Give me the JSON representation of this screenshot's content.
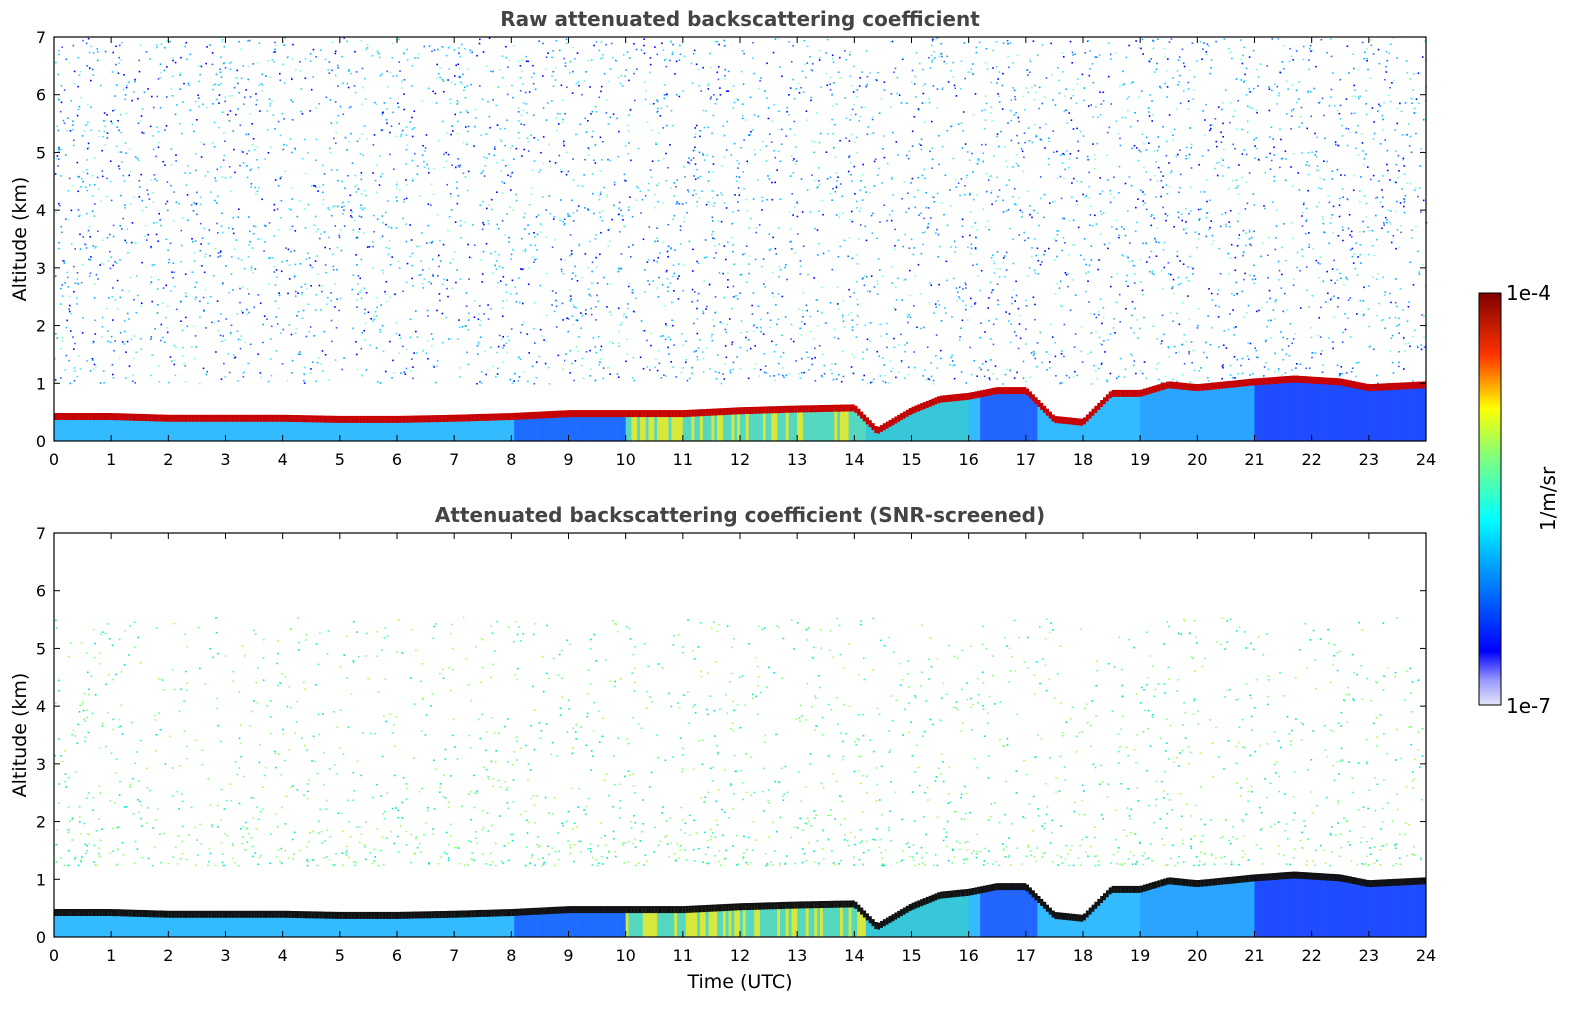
{
  "chart_data": [
    {
      "type": "heatmap",
      "title": "Raw attenuated backscattering coefficient",
      "xlabel": "",
      "ylabel": "Altitude (km)",
      "xlim": [
        0,
        24
      ],
      "ylim": [
        0,
        7
      ],
      "x_ticks": [
        "0",
        "1",
        "2",
        "3",
        "4",
        "5",
        "6",
        "7",
        "8",
        "9",
        "10",
        "11",
        "12",
        "13",
        "14",
        "15",
        "16",
        "17",
        "18",
        "19",
        "20",
        "21",
        "22",
        "23",
        "24"
      ],
      "y_ticks": [
        "0",
        "1",
        "2",
        "3",
        "4",
        "5",
        "6",
        "7"
      ],
      "color_scale": "log",
      "vmin": "1e-7",
      "vmax": "1e-4",
      "layer_top_km": {
        "time": [
          0,
          1,
          2,
          3,
          4,
          5,
          6,
          7,
          8,
          9,
          10,
          11,
          12,
          13,
          14,
          14.4,
          15,
          15.5,
          16,
          16.5,
          17,
          17.5,
          18,
          18.5,
          19,
          19.5,
          20,
          21,
          21.7,
          22.5,
          23,
          24
        ],
        "height": [
          0.45,
          0.45,
          0.42,
          0.42,
          0.42,
          0.4,
          0.4,
          0.42,
          0.45,
          0.5,
          0.5,
          0.5,
          0.55,
          0.58,
          0.6,
          0.2,
          0.55,
          0.75,
          0.8,
          0.9,
          0.9,
          0.4,
          0.35,
          0.85,
          0.85,
          1.0,
          0.95,
          1.05,
          1.1,
          1.05,
          0.95,
          1.0
        ]
      }
    },
    {
      "type": "heatmap",
      "title": "Attenuated backscattering coefficient (SNR-screened)",
      "xlabel": "Time (UTC)",
      "ylabel": "Altitude (km)",
      "xlim": [
        0,
        24
      ],
      "ylim": [
        0,
        7
      ],
      "x_ticks": [
        "0",
        "1",
        "2",
        "3",
        "4",
        "5",
        "6",
        "7",
        "8",
        "9",
        "10",
        "11",
        "12",
        "13",
        "14",
        "15",
        "16",
        "17",
        "18",
        "19",
        "20",
        "21",
        "22",
        "23",
        "24"
      ],
      "y_ticks": [
        "0",
        "1",
        "2",
        "3",
        "4",
        "5",
        "6",
        "7"
      ],
      "color_scale": "log",
      "vmin": "1e-7",
      "vmax": "1e-4",
      "layer_top_km": {
        "time": [
          0,
          1,
          2,
          3,
          4,
          5,
          6,
          7,
          8,
          9,
          10,
          11,
          12,
          13,
          14,
          14.4,
          15,
          15.5,
          16,
          16.5,
          17,
          17.5,
          18,
          18.5,
          19,
          19.5,
          20,
          21,
          21.7,
          22.5,
          23,
          24
        ],
        "height": [
          0.45,
          0.45,
          0.42,
          0.42,
          0.42,
          0.4,
          0.4,
          0.42,
          0.45,
          0.5,
          0.5,
          0.5,
          0.55,
          0.58,
          0.6,
          0.2,
          0.55,
          0.75,
          0.8,
          0.9,
          0.9,
          0.4,
          0.35,
          0.85,
          0.85,
          1.0,
          0.95,
          1.05,
          1.1,
          1.05,
          0.95,
          1.0
        ]
      }
    }
  ],
  "colorbar": {
    "max_label": "1e-4",
    "min_label": "1e-7",
    "unit_label": "1/m/sr",
    "colormap": "jet",
    "colors": [
      "#e6e6fa",
      "#0000ff",
      "#00ffff",
      "#ffff00",
      "#ff0000",
      "#800000"
    ]
  }
}
